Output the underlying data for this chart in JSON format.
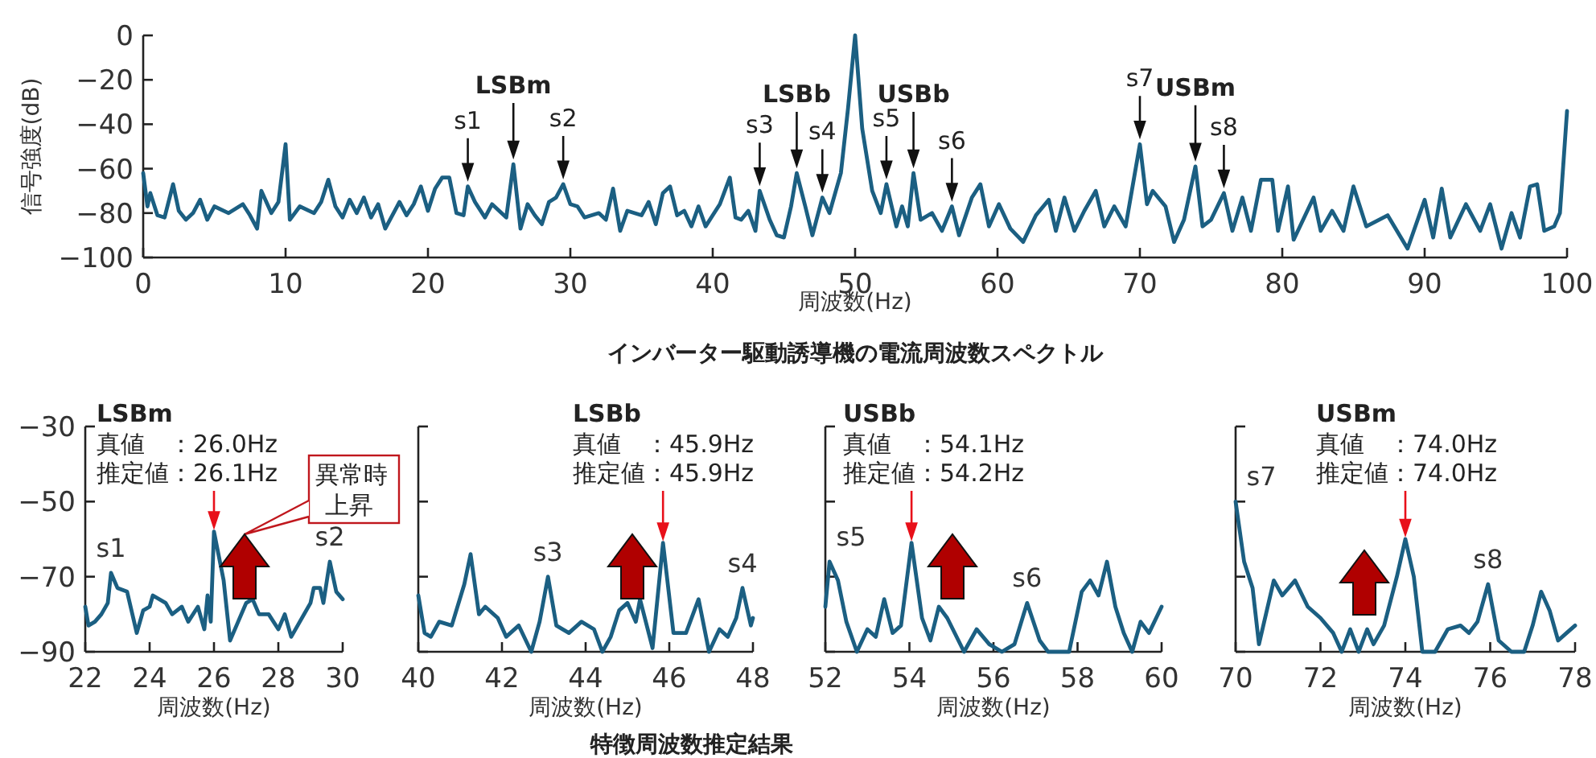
{
  "chart_data": [
    {
      "type": "line",
      "title": "インバーター駆動誘導機の電流周波数スペクトル",
      "xlabel": "周波数(Hz)",
      "ylabel": "信号強度(dB)",
      "xlim": [
        0,
        100
      ],
      "ylim": [
        -100,
        0
      ],
      "xticks": [
        0,
        10,
        20,
        30,
        40,
        50,
        60,
        70,
        80,
        90,
        100
      ],
      "yticks": [
        0,
        -20,
        -40,
        -60,
        -80,
        -100
      ],
      "color": "#1b5f82",
      "x": [
        0,
        0.3,
        0.5,
        1,
        1.5,
        2.1,
        2.5,
        3,
        3.5,
        4,
        4.5,
        5,
        6,
        7,
        7.5,
        8,
        8.3,
        9,
        9.5,
        10,
        10.3,
        11,
        12,
        12.5,
        13,
        13.5,
        14,
        14.5,
        15,
        15.5,
        16,
        16.5,
        17,
        18,
        18.5,
        19,
        19.5,
        20,
        20.5,
        21,
        21.5,
        22,
        22.5,
        22.8,
        23.3,
        24,
        24.5,
        25,
        25.5,
        26,
        26.5,
        27,
        27.5,
        28,
        28.5,
        29,
        29.5,
        30,
        30.5,
        31,
        32,
        32.5,
        33,
        33.5,
        34,
        35,
        35.5,
        36,
        36.5,
        37,
        37.5,
        38,
        38.5,
        39,
        39.5,
        40,
        40.5,
        41.2,
        41.6,
        42,
        42.5,
        43,
        43.3,
        44,
        44.5,
        45,
        45.5,
        45.9,
        46.5,
        47,
        47.7,
        48.2,
        49,
        49.5,
        50,
        50.5,
        51.2,
        51.8,
        52.2,
        52.9,
        53.3,
        53.7,
        54.1,
        54.6,
        55.4,
        56.1,
        56.8,
        57.3,
        58.2,
        58.8,
        59.4,
        60.1,
        60.9,
        61.8,
        62.7,
        63.6,
        64.1,
        64.7,
        65.4,
        66.1,
        66.9,
        67.5,
        68.2,
        69,
        70,
        70.5,
        70.9,
        71.8,
        72.4,
        73.1,
        73.9,
        74.4,
        75,
        75.9,
        76.5,
        77.2,
        77.8,
        78.5,
        79.3,
        79.7,
        80.4,
        80.8,
        82.2,
        82.7,
        83.5,
        84.3,
        85,
        85.9,
        87.4,
        88.8,
        90,
        90.6,
        91.2,
        91.8,
        92.9,
        93.9,
        94.6,
        95.4,
        96.1,
        96.7,
        97.4,
        97.9,
        98.4,
        99.1,
        99.5,
        100
      ],
      "values": [
        -62,
        -77,
        -71,
        -81,
        -82,
        -67,
        -79,
        -83,
        -80,
        -74,
        -83,
        -77,
        -80,
        -76,
        -81,
        -87,
        -70,
        -80,
        -75,
        -49,
        -83,
        -77,
        -80,
        -75,
        -65,
        -77,
        -82,
        -74,
        -80,
        -73,
        -82,
        -76,
        -87,
        -75,
        -81,
        -76,
        -68,
        -79,
        -69,
        -64,
        -64,
        -80,
        -81,
        -68,
        -75,
        -82,
        -76,
        -79,
        -82,
        -58,
        -87,
        -76,
        -81,
        -85,
        -75,
        -73,
        -67,
        -76,
        -77,
        -82,
        -80,
        -83,
        -69,
        -88,
        -79,
        -81,
        -75,
        -85,
        -71,
        -68,
        -81,
        -79,
        -86,
        -77,
        -86,
        -81,
        -76,
        -64,
        -82,
        -83,
        -79,
        -88,
        -70,
        -83,
        -90,
        -91,
        -77,
        -62,
        -77,
        -90,
        -73,
        -80,
        -62,
        -33,
        0,
        -42,
        -70,
        -80,
        -67,
        -86,
        -77,
        -86,
        -62,
        -83,
        -80,
        -88,
        -77,
        -90,
        -73,
        -67,
        -86,
        -76,
        -87,
        -93,
        -81,
        -74,
        -88,
        -73,
        -88,
        -79,
        -70,
        -86,
        -77,
        -86,
        -49,
        -76,
        -70,
        -77,
        -93,
        -83,
        -59,
        -86,
        -83,
        -71,
        -88,
        -73,
        -88,
        -65,
        -65,
        -88,
        -68,
        -92,
        -73,
        -88,
        -79,
        -88,
        -68,
        -86,
        -81,
        -96,
        -74,
        -91,
        -69,
        -91,
        -76,
        -88,
        -76,
        -96,
        -80,
        -91,
        -68,
        -67,
        -88,
        -86,
        -80,
        -34
      ],
      "annotations": [
        {
          "text": "s1",
          "x": 22.8,
          "y": -68
        },
        {
          "text": "**LSBm**",
          "x": 26,
          "y": -58
        },
        {
          "text": "s2",
          "x": 29.5,
          "y": -67
        },
        {
          "text": "s3",
          "x": 43.3,
          "y": -70
        },
        {
          "text": "**LSBb**",
          "x": 45.9,
          "y": -62
        },
        {
          "text": "s4",
          "x": 47.7,
          "y": -73
        },
        {
          "text": "s5",
          "x": 52.2,
          "y": -67
        },
        {
          "text": "**USBb**",
          "x": 54.1,
          "y": -62
        },
        {
          "text": "s6",
          "x": 56.8,
          "y": -77
        },
        {
          "text": "s7",
          "x": 70,
          "y": -49
        },
        {
          "text": "**USBm**",
          "x": 73.9,
          "y": -59
        },
        {
          "text": "s8",
          "x": 75.9,
          "y": -71
        }
      ]
    },
    {
      "type": "line",
      "title": "LSBm",
      "xlabel": "周波数(Hz)",
      "xlim": [
        22,
        30
      ],
      "ylim": [
        -90,
        -30
      ],
      "xticks": [
        22,
        24,
        26,
        28,
        30
      ],
      "yticks": [
        -30,
        -50,
        -70,
        -90
      ],
      "color": "#1b5f82",
      "x": [
        22,
        22.1,
        22.3,
        22.5,
        22.7,
        22.8,
        23,
        23.3,
        23.6,
        23.8,
        24,
        24.1,
        24.5,
        24.7,
        25,
        25.2,
        25.5,
        25.7,
        25.8,
        25.9,
        26,
        26.3,
        26.5,
        26.7,
        27,
        27.2,
        27.4,
        27.7,
        28,
        28.2,
        28.4,
        28.6,
        29,
        29.1,
        29.3,
        29.4,
        29.6,
        29.8,
        30
      ],
      "values": [
        -78,
        -83,
        -82,
        -80,
        -77,
        -69,
        -73,
        -74,
        -85,
        -79,
        -78,
        -75,
        -77,
        -80,
        -78,
        -82,
        -78,
        -84,
        -75,
        -82,
        -58,
        -71,
        -87,
        -83,
        -77,
        -76,
        -80,
        -80,
        -84,
        -80,
        -86,
        -83,
        -77,
        -73,
        -73,
        -77,
        -66,
        -74,
        -76
      ],
      "annotations": [
        "真値　：26.0Hz",
        {
          "text": "推定値：26.1Hz",
          "x": 26,
          "y": -58
        },
        {
          "text": "s1",
          "x": 22.8,
          "y": -69
        },
        {
          "text": "s2",
          "x": 29.6,
          "y": -66
        },
        "異常時上昇"
      ]
    },
    {
      "type": "line",
      "title": "LSBb",
      "xlabel": "周波数(Hz)",
      "xlim": [
        40,
        48
      ],
      "ylim": [
        -90,
        -30
      ],
      "xticks": [
        40,
        42,
        44,
        46,
        48
      ],
      "yticks": [
        -30,
        -50,
        -70,
        -90
      ],
      "tick_labels": "x",
      "color": "#1b5f82",
      "x": [
        40,
        40.15,
        40.3,
        40.5,
        40.8,
        41.1,
        41.25,
        41.45,
        41.6,
        41.9,
        42.1,
        42.4,
        42.7,
        42.9,
        43.1,
        43.3,
        43.6,
        43.9,
        44.2,
        44.4,
        44.6,
        44.8,
        45,
        45.2,
        45.3,
        45.6,
        45.85,
        46.1,
        46.4,
        46.7,
        46.95,
        47.2,
        47.4,
        47.6,
        47.75,
        47.95,
        48
      ],
      "values": [
        -75,
        -85,
        -86,
        -82,
        -83,
        -72,
        -64,
        -80,
        -78,
        -81,
        -86,
        -83,
        -90,
        -82,
        -70,
        -83,
        -85,
        -82,
        -84,
        -90,
        -86,
        -79,
        -77,
        -82,
        -76,
        -89,
        -61,
        -85,
        -85,
        -76,
        -90,
        -84,
        -86,
        -81,
        -73,
        -83,
        -81
      ],
      "annotations": [
        "真値　：45.9Hz",
        {
          "text": "推定値：45.9Hz",
          "x": 45.85,
          "y": -61
        },
        {
          "text": "s3",
          "x": 43.1,
          "y": -70
        },
        {
          "text": "s4",
          "x": 47.75,
          "y": -73
        }
      ]
    },
    {
      "type": "line",
      "title": "USBb",
      "xlabel": "周波数(Hz)",
      "xlim": [
        52,
        60
      ],
      "ylim": [
        -90,
        -30
      ],
      "xticks": [
        52,
        54,
        56,
        58,
        60
      ],
      "yticks": [
        -30,
        -50,
        -70,
        -90
      ],
      "tick_labels": "x",
      "color": "#1b5f82",
      "x": [
        52,
        52.1,
        52.3,
        52.5,
        52.75,
        53,
        53.2,
        53.4,
        53.6,
        53.8,
        54.05,
        54.3,
        54.5,
        54.7,
        54.9,
        55.3,
        55.6,
        55.9,
        56.2,
        56.5,
        56.8,
        57.1,
        57.3,
        57.8,
        58.1,
        58.3,
        58.5,
        58.7,
        58.9,
        59.1,
        59.3,
        59.5,
        59.7,
        60
      ],
      "values": [
        -78,
        -66,
        -71,
        -82,
        -90,
        -84,
        -86,
        -76,
        -85,
        -83,
        -61,
        -81,
        -87,
        -78,
        -81,
        -90,
        -84,
        -88,
        -90,
        -88,
        -77,
        -87,
        -90,
        -90,
        -74,
        -71,
        -75,
        -66,
        -78,
        -85,
        -90,
        -82,
        -85,
        -78
      ],
      "annotations": [
        "真値　：54.1Hz",
        {
          "text": "推定値：54.2Hz",
          "x": 54.05,
          "y": -61
        },
        {
          "text": "s5",
          "x": 52.1,
          "y": -66
        },
        {
          "text": "s6",
          "x": 56.8,
          "y": -77
        }
      ]
    },
    {
      "type": "line",
      "title": "USBm",
      "xlabel": "周波数(Hz)",
      "xlim": [
        70,
        78
      ],
      "ylim": [
        -90,
        -30
      ],
      "xticks": [
        70,
        72,
        74,
        76,
        78
      ],
      "yticks": [
        -30,
        -50,
        -70,
        -90
      ],
      "tick_labels": "x",
      "color": "#1b5f82",
      "x": [
        70,
        70.2,
        70.4,
        70.55,
        70.9,
        71.1,
        71.4,
        71.7,
        72,
        72.3,
        72.5,
        72.7,
        72.9,
        73.1,
        73.25,
        73.5,
        73.8,
        74,
        74.2,
        74.4,
        74.7,
        75,
        75.3,
        75.5,
        75.7,
        75.95,
        76.2,
        76.5,
        76.8,
        77,
        77.2,
        77.4,
        77.6,
        77.8,
        78
      ],
      "values": [
        -50,
        -66,
        -73,
        -88,
        -71,
        -75,
        -71,
        -78,
        -81,
        -85,
        -90,
        -84,
        -90,
        -84,
        -88,
        -83,
        -70,
        -60,
        -70,
        -90,
        -90,
        -84,
        -83,
        -85,
        -82,
        -72,
        -87,
        -90,
        -90,
        -83,
        -74,
        -79,
        -87,
        -85,
        -83
      ],
      "annotations": [
        "真値　：74.0Hz",
        {
          "text": "推定値：74.0Hz",
          "x": 74,
          "y": -60
        },
        {
          "text": "s7",
          "x": 70,
          "y": -50
        },
        {
          "text": "s8",
          "x": 75.95,
          "y": -72
        }
      ]
    },
    {
      "type": "other",
      "title": "特徴周波数推定結果"
    }
  ]
}
